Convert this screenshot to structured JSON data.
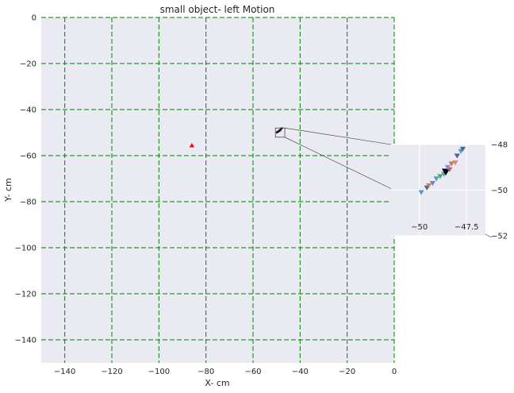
{
  "chart_data": {
    "type": "scatter",
    "title": "small object- left Motion",
    "xlabel": "X- cm",
    "ylabel": "Y- cm",
    "xlim": [
      -150,
      0
    ],
    "ylim": [
      -150,
      0
    ],
    "xticks": [
      -140,
      -120,
      -100,
      -80,
      -60,
      -40,
      -20,
      0
    ],
    "yticks": [
      0,
      -20,
      -40,
      -60,
      -80,
      -100,
      -120,
      -140
    ],
    "grid": true,
    "grid_style": "dashed",
    "grid_color": "#008000",
    "background_color": "#eaeaf2",
    "target": {
      "x": -86,
      "y": -55.5,
      "marker": "triangle-up",
      "color": "#ff0000"
    },
    "points": [
      {
        "x": -49.9,
        "y": -50.1,
        "color": "#4c9fc4"
      },
      {
        "x": -49.6,
        "y": -49.9,
        "color": "#5a5a9c"
      },
      {
        "x": -49.5,
        "y": -49.8,
        "color": "#b08f4f"
      },
      {
        "x": -49.3,
        "y": -49.7,
        "color": "#7f7fbf"
      },
      {
        "x": -49.1,
        "y": -49.5,
        "color": "#4c9fc4"
      },
      {
        "x": -48.9,
        "y": -49.4,
        "color": "#5ea55e"
      },
      {
        "x": -48.7,
        "y": -49.3,
        "color": "#4c9fc4"
      },
      {
        "x": -48.6,
        "y": -49.2,
        "color": "#000000"
      },
      {
        "x": -48.4,
        "y": -49.1,
        "color": "#c75c5c"
      },
      {
        "x": -48.5,
        "y": -49.0,
        "color": "#8c8cc8"
      },
      {
        "x": -48.3,
        "y": -48.85,
        "color": "#c47a5a"
      },
      {
        "x": -48.1,
        "y": -48.8,
        "color": "#e0866a"
      },
      {
        "x": -48.0,
        "y": -48.5,
        "color": "#5a5a9c"
      },
      {
        "x": -47.8,
        "y": -48.3,
        "color": "#4c9fc4"
      },
      {
        "x": -47.7,
        "y": -48.2,
        "color": "#5a5a9c"
      }
    ],
    "inset": {
      "xlim": [
        -51.5,
        -46.5
      ],
      "ylim": [
        -52,
        -48
      ],
      "xticks": [
        -50.0,
        -47.5
      ],
      "yticks": [
        -48,
        -50,
        -52
      ],
      "source_box": {
        "x": [
          -50.5,
          -46.5
        ],
        "y": [
          -52,
          -48
        ]
      }
    }
  }
}
